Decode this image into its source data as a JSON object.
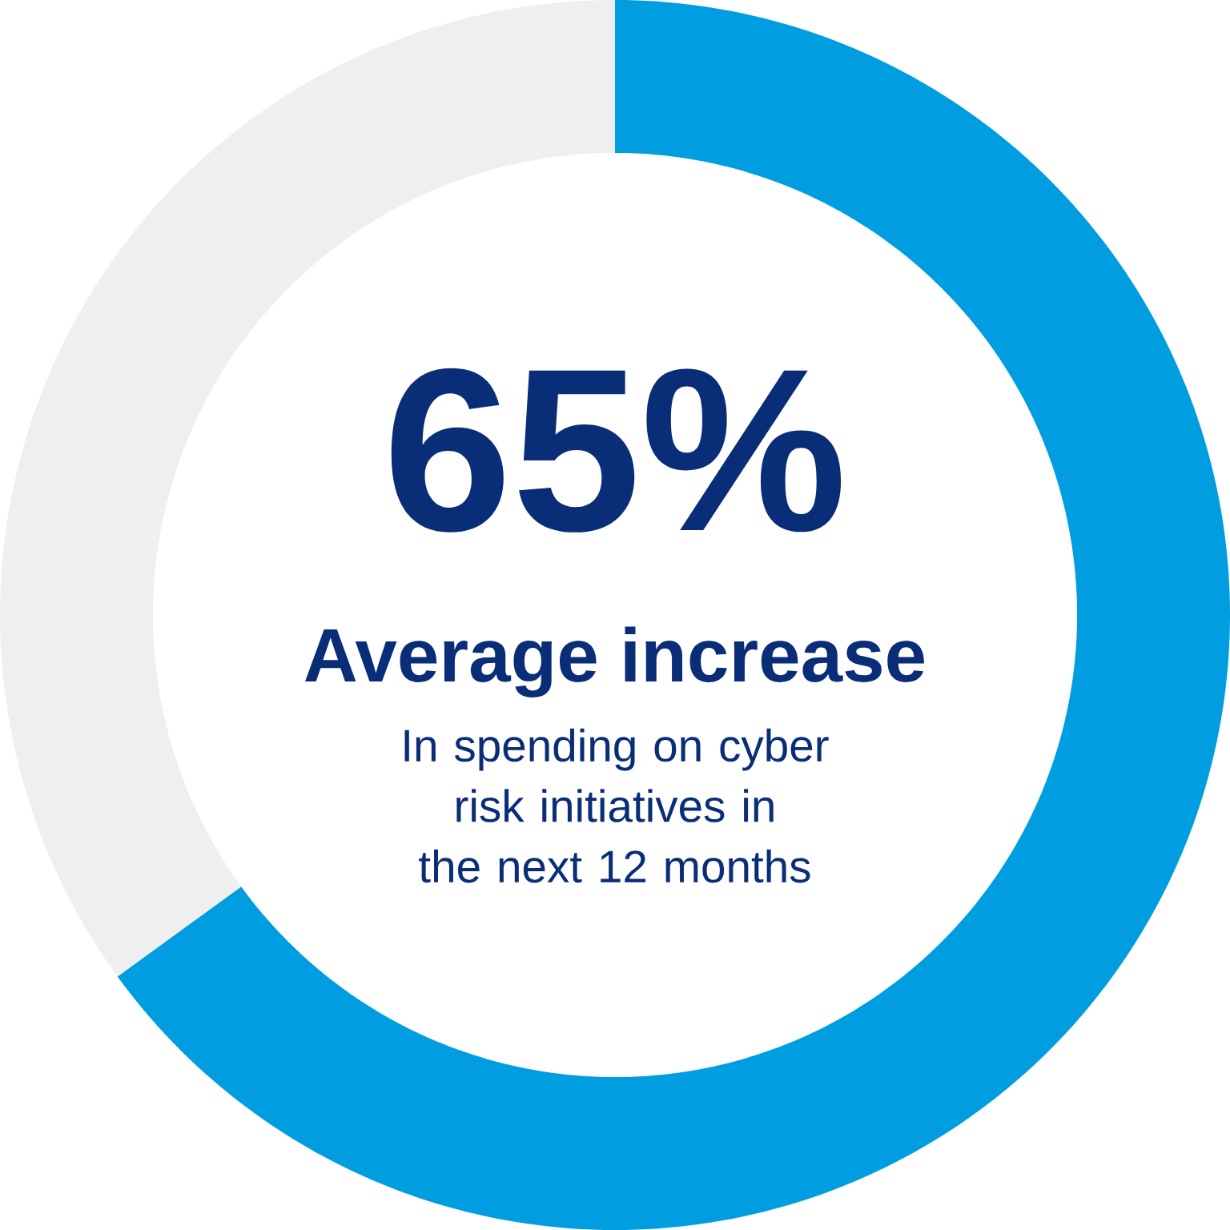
{
  "chart_data": {
    "type": "donut",
    "title": "Average increase",
    "subtitle": "In spending on cyber risk initiatives in the next 12 months",
    "categories": [
      null,
      null
    ],
    "values": [
      65,
      35
    ],
    "colors": [
      "#009de0",
      "#efefef"
    ],
    "value_labels": [
      "65%",
      null
    ]
  }
}
